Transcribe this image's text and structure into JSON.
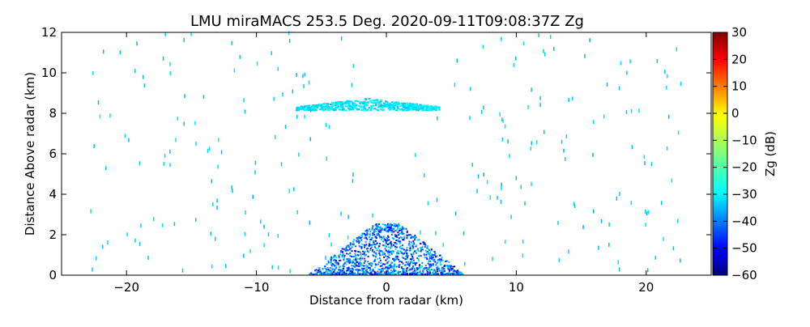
{
  "chart_data": {
    "type": "heatmap",
    "title": "LMU miraMACS 253.5 Deg. 2020-09-11T09:08:37Z  Zg",
    "xlabel": "Distance from radar (km)",
    "ylabel": "Distance Above radar  (km)",
    "xlim": [
      -25,
      25
    ],
    "ylim": [
      0,
      12
    ],
    "x_ticks": [
      -20,
      -10,
      0,
      10,
      20
    ],
    "y_ticks": [
      0,
      2,
      4,
      6,
      8,
      10,
      12
    ],
    "colorbar": {
      "label": "Zg (dB)",
      "range": [
        -60,
        30
      ],
      "ticks": [
        -60,
        -50,
        -40,
        -30,
        -20,
        -10,
        0,
        10,
        20,
        30
      ],
      "colormap": "jet",
      "colors": [
        "#00007f",
        "#0000ff",
        "#007fff",
        "#00ffff",
        "#7fff7f",
        "#ffff00",
        "#ff7f00",
        "#ff0000",
        "#7f0000"
      ]
    },
    "grid": false,
    "features": [
      {
        "name": "cloud layer",
        "x_range": [
          -7,
          4
        ],
        "altitude_km": [
          8.1,
          8.7
        ],
        "dbz_range": [
          -32,
          -25
        ]
      },
      {
        "name": "near-surface echoes",
        "x_range": [
          -10,
          5
        ],
        "altitude_km": [
          0,
          2.5
        ],
        "dbz_range": [
          -50,
          -28
        ]
      },
      {
        "name": "sparse echoes",
        "x_range": [
          -23,
          23
        ],
        "altitude_km": [
          0,
          12
        ],
        "dbz_range": [
          -33,
          -28
        ]
      }
    ]
  }
}
